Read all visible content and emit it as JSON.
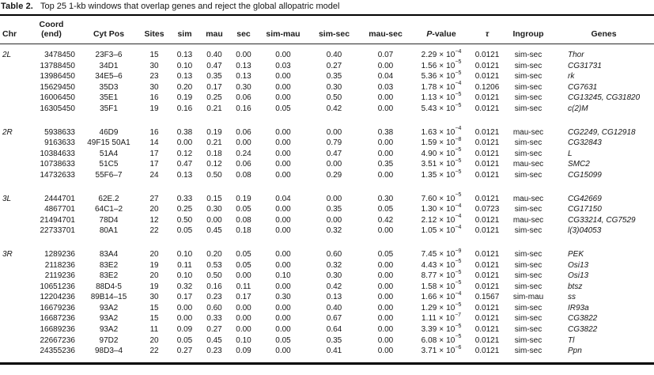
{
  "document": {
    "title_label": "Table 2.",
    "title_text": "Top 25 1-kb windows that overlap genes and reject the global allopatric model"
  },
  "table": {
    "columns": [
      {
        "key": "chr",
        "label": "Chr"
      },
      {
        "key": "coord",
        "label": "Coord\n(end)"
      },
      {
        "key": "cyt",
        "label": "Cyt Pos"
      },
      {
        "key": "sites",
        "label": "Sites"
      },
      {
        "key": "sim",
        "label": "sim"
      },
      {
        "key": "mau",
        "label": "mau"
      },
      {
        "key": "sec",
        "label": "sec"
      },
      {
        "key": "sim_mau",
        "label": "sim-mau"
      },
      {
        "key": "sim_sec",
        "label": "sim-sec"
      },
      {
        "key": "mau_sec",
        "label": "mau-sec"
      },
      {
        "key": "pvalue",
        "label_italic": "P",
        "label_rest": "-value"
      },
      {
        "key": "tau",
        "label": "τ",
        "italic": true
      },
      {
        "key": "ingroup",
        "label": "Ingroup"
      },
      {
        "key": "genes",
        "label": "Genes"
      }
    ],
    "groups": [
      {
        "chr": "2L",
        "rows": [
          {
            "coord": "3478450",
            "cyt": "23F3–6",
            "sites": "15",
            "sim": "0.13",
            "mau": "0.40",
            "sec": "0.00",
            "sim_mau": "0.00",
            "sim_sec": "0.40",
            "mau_sec": "0.07",
            "p_coef": "2.29",
            "p_exp": "−4",
            "tau": "0.0121",
            "ingroup": "sim-sec",
            "genes": "Thor"
          },
          {
            "coord": "13788450",
            "cyt": "34D1",
            "sites": "30",
            "sim": "0.10",
            "mau": "0.47",
            "sec": "0.13",
            "sim_mau": "0.03",
            "sim_sec": "0.27",
            "mau_sec": "0.00",
            "p_coef": "1.56",
            "p_exp": "−5",
            "tau": "0.0121",
            "ingroup": "sim-sec",
            "genes": "CG31731"
          },
          {
            "coord": "13986450",
            "cyt": "34E5–6",
            "sites": "23",
            "sim": "0.13",
            "mau": "0.35",
            "sec": "0.13",
            "sim_mau": "0.00",
            "sim_sec": "0.35",
            "mau_sec": "0.04",
            "p_coef": "5.36",
            "p_exp": "−5",
            "tau": "0.0121",
            "ingroup": "sim-sec",
            "genes": "rk"
          },
          {
            "coord": "15629450",
            "cyt": "35D3",
            "sites": "30",
            "sim": "0.20",
            "mau": "0.17",
            "sec": "0.30",
            "sim_mau": "0.00",
            "sim_sec": "0.30",
            "mau_sec": "0.03",
            "p_coef": "1.78",
            "p_exp": "−4",
            "tau": "0.1206",
            "ingroup": "sim-sec",
            "genes": "CG7631"
          },
          {
            "coord": "16006450",
            "cyt": "35E1",
            "sites": "16",
            "sim": "0.19",
            "mau": "0.25",
            "sec": "0.06",
            "sim_mau": "0.00",
            "sim_sec": "0.50",
            "mau_sec": "0.00",
            "p_coef": "1.13",
            "p_exp": "−5",
            "tau": "0.0121",
            "ingroup": "sim-sec",
            "genes": "CG13245, CG31820"
          },
          {
            "coord": "16305450",
            "cyt": "35F1",
            "sites": "19",
            "sim": "0.16",
            "mau": "0.21",
            "sec": "0.16",
            "sim_mau": "0.05",
            "sim_sec": "0.42",
            "mau_sec": "0.00",
            "p_coef": "5.43",
            "p_exp": "−5",
            "tau": "0.0121",
            "ingroup": "sim-sec",
            "genes": "c(2)M"
          }
        ]
      },
      {
        "chr": "2R",
        "rows": [
          {
            "coord": "5938633",
            "cyt": "46D9",
            "sites": "16",
            "sim": "0.38",
            "mau": "0.19",
            "sec": "0.06",
            "sim_mau": "0.00",
            "sim_sec": "0.00",
            "mau_sec": "0.38",
            "p_coef": "1.63",
            "p_exp": "−4",
            "tau": "0.0121",
            "ingroup": "mau-sec",
            "genes": "CG2249, CG12918"
          },
          {
            "coord": "9163633",
            "cyt": "49F15 50A1",
            "sites": "14",
            "sim": "0.00",
            "mau": "0.21",
            "sec": "0.00",
            "sim_mau": "0.00",
            "sim_sec": "0.79",
            "mau_sec": "0.00",
            "p_coef": "1.59",
            "p_exp": "−8",
            "tau": "0.0121",
            "ingroup": "sim-sec",
            "genes": "CG32843"
          },
          {
            "coord": "10384633",
            "cyt": "51A4",
            "sites": "17",
            "sim": "0.12",
            "mau": "0.18",
            "sec": "0.24",
            "sim_mau": "0.00",
            "sim_sec": "0.47",
            "mau_sec": "0.00",
            "p_coef": "4.90",
            "p_exp": "−5",
            "tau": "0.0121",
            "ingroup": "sim-sec",
            "genes": "L"
          },
          {
            "coord": "10738633",
            "cyt": "51C5",
            "sites": "17",
            "sim": "0.47",
            "mau": "0.12",
            "sec": "0.06",
            "sim_mau": "0.00",
            "sim_sec": "0.00",
            "mau_sec": "0.35",
            "p_coef": "3.51",
            "p_exp": "−5",
            "tau": "0.0121",
            "ingroup": "mau-sec",
            "genes": "SMC2"
          },
          {
            "coord": "14732633",
            "cyt": "55F6–7",
            "sites": "24",
            "sim": "0.13",
            "mau": "0.50",
            "sec": "0.08",
            "sim_mau": "0.00",
            "sim_sec": "0.29",
            "mau_sec": "0.00",
            "p_coef": "1.35",
            "p_exp": "−5",
            "tau": "0.0121",
            "ingroup": "sim-sec",
            "genes": "CG15099"
          }
        ]
      },
      {
        "chr": "3L",
        "rows": [
          {
            "coord": "2444701",
            "cyt": "62E.2",
            "sites": "27",
            "sim": "0.33",
            "mau": "0.15",
            "sec": "0.19",
            "sim_mau": "0.04",
            "sim_sec": "0.00",
            "mau_sec": "0.30",
            "p_coef": "7.60",
            "p_exp": "−5",
            "tau": "0.0121",
            "ingroup": "mau-sec",
            "genes": "CG42669"
          },
          {
            "coord": "4867701",
            "cyt": "64C1–2",
            "sites": "20",
            "sim": "0.25",
            "mau": "0.30",
            "sec": "0.05",
            "sim_mau": "0.00",
            "sim_sec": "0.35",
            "mau_sec": "0.05",
            "p_coef": "1.30",
            "p_exp": "−4",
            "tau": "0.0723",
            "ingroup": "sim-sec",
            "genes": "CG17150"
          },
          {
            "coord": "21494701",
            "cyt": "78D4",
            "sites": "12",
            "sim": "0.50",
            "mau": "0.00",
            "sec": "0.08",
            "sim_mau": "0.00",
            "sim_sec": "0.00",
            "mau_sec": "0.42",
            "p_coef": "2.12",
            "p_exp": "−4",
            "tau": "0.0121",
            "ingroup": "mau-sec",
            "genes": "CG33214, CG7529"
          },
          {
            "coord": "22733701",
            "cyt": "80A1",
            "sites": "22",
            "sim": "0.05",
            "mau": "0.45",
            "sec": "0.18",
            "sim_mau": "0.00",
            "sim_sec": "0.32",
            "mau_sec": "0.00",
            "p_coef": "1.05",
            "p_exp": "−4",
            "tau": "0.0121",
            "ingroup": "sim-sec",
            "genes": "l(3)04053"
          }
        ]
      },
      {
        "chr": "3R",
        "rows": [
          {
            "coord": "1289236",
            "cyt": "83A4",
            "sites": "20",
            "sim": "0.10",
            "mau": "0.20",
            "sec": "0.05",
            "sim_mau": "0.00",
            "sim_sec": "0.60",
            "mau_sec": "0.05",
            "p_coef": "7.45",
            "p_exp": "−9",
            "tau": "0.0121",
            "ingroup": "sim-sec",
            "genes": "PEK"
          },
          {
            "coord": "2118236",
            "cyt": "83E2",
            "sites": "19",
            "sim": "0.11",
            "mau": "0.53",
            "sec": "0.05",
            "sim_mau": "0.00",
            "sim_sec": "0.32",
            "mau_sec": "0.00",
            "p_coef": "4.43",
            "p_exp": "−5",
            "tau": "0.0121",
            "ingroup": "sim-sec",
            "genes": "Osi13"
          },
          {
            "coord": "2119236",
            "cyt": "83E2",
            "sites": "20",
            "sim": "0.10",
            "mau": "0.50",
            "sec": "0.00",
            "sim_mau": "0.10",
            "sim_sec": "0.30",
            "mau_sec": "0.00",
            "p_coef": "8.77",
            "p_exp": "−5",
            "tau": "0.0121",
            "ingroup": "sim-sec",
            "genes": "Osi13"
          },
          {
            "coord": "10651236",
            "cyt": "88D4-5",
            "sites": "19",
            "sim": "0.32",
            "mau": "0.16",
            "sec": "0.11",
            "sim_mau": "0.00",
            "sim_sec": "0.42",
            "mau_sec": "0.00",
            "p_coef": "1.58",
            "p_exp": "−5",
            "tau": "0.0121",
            "ingroup": "sim-sec",
            "genes": "btsz"
          },
          {
            "coord": "12204236",
            "cyt": "89B14–15",
            "sites": "30",
            "sim": "0.17",
            "mau": "0.23",
            "sec": "0.17",
            "sim_mau": "0.30",
            "sim_sec": "0.13",
            "mau_sec": "0.00",
            "p_coef": "1.66",
            "p_exp": "−4",
            "tau": "0.1567",
            "ingroup": "sim-mau",
            "genes": "ss"
          },
          {
            "coord": "16679236",
            "cyt": "93A2",
            "sites": "15",
            "sim": "0.00",
            "mau": "0.60",
            "sec": "0.00",
            "sim_mau": "0.00",
            "sim_sec": "0.40",
            "mau_sec": "0.00",
            "p_coef": "1.29",
            "p_exp": "−5",
            "tau": "0.0121",
            "ingroup": "sim-sec",
            "genes": "IR93a"
          },
          {
            "coord": "16687236",
            "cyt": "93A2",
            "sites": "15",
            "sim": "0.00",
            "mau": "0.33",
            "sec": "0.00",
            "sim_mau": "0.00",
            "sim_sec": "0.67",
            "mau_sec": "0.00",
            "p_coef": "1.11",
            "p_exp": "−7",
            "tau": "0.0121",
            "ingroup": "sim-sec",
            "genes": "CG3822"
          },
          {
            "coord": "16689236",
            "cyt": "93A2",
            "sites": "11",
            "sim": "0.09",
            "mau": "0.27",
            "sec": "0.00",
            "sim_mau": "0.00",
            "sim_sec": "0.64",
            "mau_sec": "0.00",
            "p_coef": "3.39",
            "p_exp": "−5",
            "tau": "0.0121",
            "ingroup": "sim-sec",
            "genes": "CG3822"
          },
          {
            "coord": "22667236",
            "cyt": "97D2",
            "sites": "20",
            "sim": "0.05",
            "mau": "0.45",
            "sec": "0.10",
            "sim_mau": "0.05",
            "sim_sec": "0.35",
            "mau_sec": "0.00",
            "p_coef": "6.08",
            "p_exp": "−5",
            "tau": "0.0121",
            "ingroup": "sim-sec",
            "genes": "Tl"
          },
          {
            "coord": "24355236",
            "cyt": "98D3–4",
            "sites": "22",
            "sim": "0.27",
            "mau": "0.23",
            "sec": "0.09",
            "sim_mau": "0.00",
            "sim_sec": "0.41",
            "mau_sec": "0.00",
            "p_coef": "3.71",
            "p_exp": "−6",
            "tau": "0.0121",
            "ingroup": "sim-sec",
            "genes": "Ppn"
          }
        ]
      }
    ]
  }
}
